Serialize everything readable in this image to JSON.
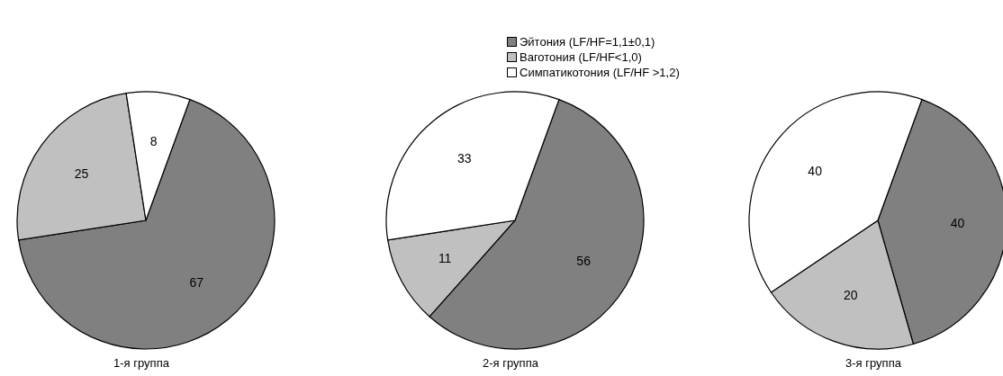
{
  "chart_data": [
    {
      "type": "pie",
      "title": "1-я группа",
      "categories": [
        null,
        null,
        null
      ],
      "values": [
        67,
        25,
        8
      ],
      "colors": [
        "#808080",
        "#c0c0c0",
        "#ffffff"
      ],
      "data_labels": true,
      "legend": false
    },
    {
      "type": "pie",
      "title": "2-я группа",
      "categories": [
        "Эйтония (LF/HF=1,1±0,1)",
        "Ваготония (LF/HF<1,0)",
        "Симпатикотония (LF/HF >1,2)"
      ],
      "values": [
        56,
        11,
        33
      ],
      "colors": [
        "#808080",
        "#c0c0c0",
        "#ffffff"
      ],
      "data_labels": true,
      "legend": "top"
    },
    {
      "type": "pie",
      "title": "3-я группа",
      "categories": [
        null,
        null,
        null
      ],
      "values": [
        40,
        20,
        40
      ],
      "colors": [
        "#808080",
        "#c0c0c0",
        "#ffffff"
      ],
      "data_labels": true,
      "legend": false
    }
  ]
}
